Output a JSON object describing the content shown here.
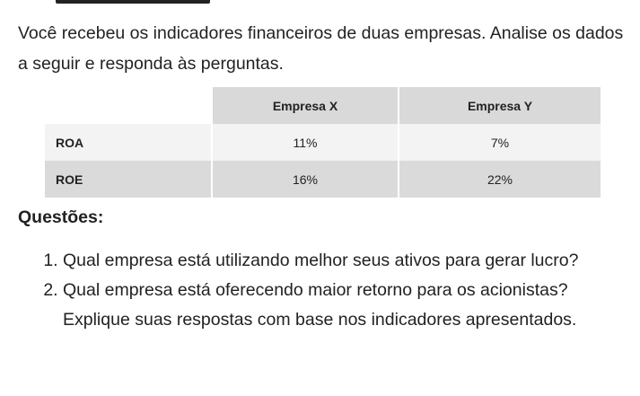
{
  "intro": "Você recebeu os indicadores financeiros de duas empresas. Analise os dados a seguir e responda às perguntas.",
  "table": {
    "header": [
      "",
      "Empresa X",
      "Empresa Y"
    ],
    "rows": [
      [
        "ROA",
        "11%",
        "7%"
      ],
      [
        "ROE",
        "16%",
        "22%"
      ]
    ]
  },
  "questions_title": "Questões:",
  "questions": [
    "Qual empresa está utilizando melhor seus ativos para gerar lucro?",
    "Qual empresa está oferecendo maior retorno para os acionistas? Explique suas respostas com base nos indicadores apresentados."
  ]
}
